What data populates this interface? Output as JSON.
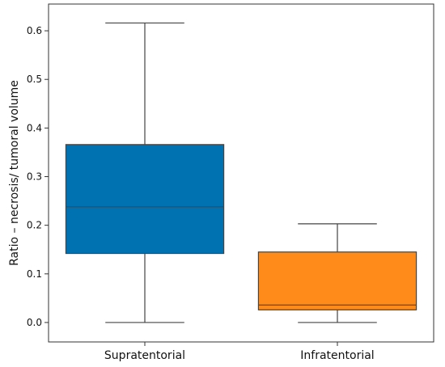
{
  "chart_data": {
    "type": "box",
    "title": "",
    "xlabel": "",
    "ylabel": "Ratio – necrosis/ tumoral volume",
    "ylim": [
      -0.04,
      0.655
    ],
    "yticks": [
      0.0,
      0.1,
      0.2,
      0.3,
      0.4,
      0.5,
      0.6
    ],
    "ytick_labels": [
      "0.0",
      "0.1",
      "0.2",
      "0.3",
      "0.4",
      "0.5",
      "0.6"
    ],
    "grid": false,
    "categories": [
      "Supratentorial",
      "Infratentorial"
    ],
    "boxes": [
      {
        "category": "Supratentorial",
        "whisker_low": 0.0,
        "q1": 0.142,
        "median": 0.238,
        "q3": 0.366,
        "whisker_high": 0.616,
        "color": "#0072b2"
      },
      {
        "category": "Infratentorial",
        "whisker_low": 0.0,
        "q1": 0.026,
        "median": 0.036,
        "q3": 0.145,
        "whisker_high": 0.203,
        "color": "#ff8c1a"
      }
    ]
  }
}
